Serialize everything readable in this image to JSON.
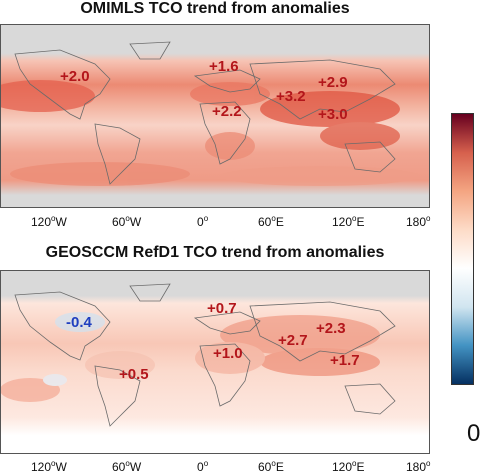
{
  "panels": [
    {
      "title": "OMIMLS TCO trend from anomalies",
      "land_bg": "#f4d2c8",
      "labels": [
        {
          "text": "+2.0",
          "color": "#b3161b"
        },
        {
          "text": "+1.6",
          "color": "#b3161b"
        },
        {
          "text": "+2.2",
          "color": "#b3161b"
        },
        {
          "text": "+3.2",
          "color": "#b3161b"
        },
        {
          "text": "+2.9",
          "color": "#b3161b"
        },
        {
          "text": "+3.0",
          "color": "#b3161b"
        }
      ]
    },
    {
      "title": "GEOSCCM RefD1 TCO trend from anomalies",
      "land_bg": "#fbe6de",
      "labels": [
        {
          "text": "-0.4",
          "color": "#1f3fbf"
        },
        {
          "text": "+0.7",
          "color": "#b3161b"
        },
        {
          "text": "+0.5",
          "color": "#b3161b"
        },
        {
          "text": "+1.0",
          "color": "#b3161b"
        },
        {
          "text": "+2.7",
          "color": "#b3161b"
        },
        {
          "text": "+2.3",
          "color": "#b3161b"
        },
        {
          "text": "+1.7",
          "color": "#b3161b"
        }
      ]
    }
  ],
  "longitude_ticks": [
    {
      "value": "120",
      "dir": "W"
    },
    {
      "value": "60",
      "dir": "W"
    },
    {
      "value": "0",
      "dir": ""
    },
    {
      "value": "60",
      "dir": "E"
    },
    {
      "value": "120",
      "dir": "E"
    },
    {
      "value": "180",
      "dir": ""
    }
  ],
  "colorbar": {
    "colors": [
      "#053061",
      "#4393c3",
      "#d1e5f0",
      "#ffffff",
      "#fddbc7",
      "#f4a582",
      "#d6604d",
      "#67001f"
    ],
    "visible_tick": "0"
  },
  "colors": {
    "polar_gray": "#d9d9d9",
    "coast": "#6b6b6b"
  }
}
